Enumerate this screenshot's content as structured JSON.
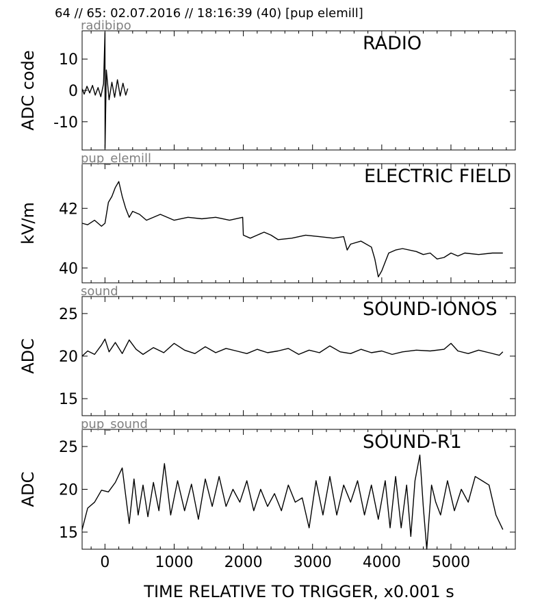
{
  "header": {
    "title": "64 // 65:   02.07.2016 // 18:16:39 (40)  [pup elemill]"
  },
  "xaxis": {
    "label": "TIME RELATIVE TO TRIGGER,   x0.001 s",
    "range": [
      -330,
      5930
    ],
    "ticks": [
      0,
      1000,
      2000,
      3000,
      4000,
      5000
    ]
  },
  "chart_data": [
    {
      "type": "line",
      "source_label": "radibipo",
      "title": "RADIO",
      "ylabel": "ADC code",
      "ylim": [
        -19,
        19
      ],
      "yticks": [
        10,
        0,
        -10
      ],
      "ytick_labels": [
        "10",
        "0",
        "-10"
      ],
      "series": [
        {
          "x": [
            -330,
            -300,
            -260,
            -220,
            -180,
            -140,
            -100,
            -60,
            -20,
            0,
            1,
            20,
            60,
            100,
            140,
            180,
            220,
            260,
            300,
            330
          ],
          "y": [
            0.5,
            -1.2,
            1.3,
            -0.8,
            1.6,
            -1.5,
            0.9,
            -2.0,
            2.1,
            18.5,
            -18.5,
            6.5,
            -3.0,
            2.6,
            -2.2,
            3.4,
            -1.8,
            2.3,
            -1.5,
            0.6
          ]
        }
      ]
    },
    {
      "type": "line",
      "source_label": "pup_elemill",
      "title": "ELECTRIC FIELD",
      "ylabel": "kV/m",
      "ylim": [
        39.5,
        43.5
      ],
      "yticks": [
        42,
        40
      ],
      "ytick_labels": [
        "42",
        "40"
      ],
      "series": [
        {
          "x": [
            -330,
            -250,
            -150,
            -50,
            0,
            50,
            100,
            150,
            200,
            250,
            300,
            350,
            400,
            500,
            600,
            800,
            1000,
            1200,
            1400,
            1600,
            1800,
            1990,
            2000,
            2100,
            2200,
            2300,
            2400,
            2500,
            2700,
            2900,
            3100,
            3300,
            3450,
            3500,
            3550,
            3700,
            3850,
            3900,
            3950,
            4000,
            4050,
            4100,
            4200,
            4300,
            4500,
            4600,
            4700,
            4800,
            4900,
            5000,
            5100,
            5200,
            5400,
            5600,
            5750
          ],
          "y": [
            41.5,
            41.45,
            41.6,
            41.4,
            41.5,
            42.2,
            42.4,
            42.7,
            42.9,
            42.4,
            42.0,
            41.7,
            41.9,
            41.8,
            41.6,
            41.8,
            41.6,
            41.7,
            41.65,
            41.7,
            41.6,
            41.7,
            41.1,
            41.0,
            41.1,
            41.2,
            41.1,
            40.95,
            41.0,
            41.1,
            41.05,
            41.0,
            41.05,
            40.6,
            40.8,
            40.9,
            40.7,
            40.3,
            39.7,
            39.9,
            40.2,
            40.5,
            40.6,
            40.65,
            40.55,
            40.45,
            40.5,
            40.3,
            40.35,
            40.5,
            40.4,
            40.5,
            40.45,
            40.5,
            40.5
          ]
        }
      ]
    },
    {
      "type": "line",
      "source_label": "sound",
      "title": "SOUND-IONOS",
      "ylabel": "ADC",
      "ylim": [
        13,
        27
      ],
      "yticks": [
        25,
        20,
        15
      ],
      "ytick_labels": [
        "25",
        "20",
        "15"
      ],
      "series": [
        {
          "x": [
            -330,
            -250,
            -150,
            -50,
            0,
            60,
            150,
            250,
            350,
            450,
            550,
            700,
            850,
            1000,
            1150,
            1300,
            1450,
            1600,
            1750,
            1900,
            2050,
            2200,
            2350,
            2500,
            2650,
            2800,
            2950,
            3100,
            3250,
            3400,
            3550,
            3700,
            3850,
            4000,
            4150,
            4300,
            4500,
            4700,
            4900,
            5000,
            5100,
            5250,
            5400,
            5550,
            5700,
            5750
          ],
          "y": [
            20.0,
            20.6,
            20.2,
            21.3,
            22.0,
            20.5,
            21.6,
            20.3,
            21.9,
            20.8,
            20.2,
            21.0,
            20.4,
            21.5,
            20.7,
            20.3,
            21.1,
            20.4,
            20.9,
            20.6,
            20.3,
            20.8,
            20.4,
            20.6,
            20.9,
            20.2,
            20.7,
            20.4,
            21.2,
            20.5,
            20.3,
            20.8,
            20.4,
            20.6,
            20.2,
            20.5,
            20.7,
            20.6,
            20.8,
            21.5,
            20.6,
            20.3,
            20.7,
            20.4,
            20.1,
            20.5
          ]
        }
      ]
    },
    {
      "type": "line",
      "source_label": "pup_sound",
      "title": "SOUND-R1",
      "ylabel": "ADC",
      "ylim": [
        13,
        27
      ],
      "yticks": [
        25,
        20,
        15
      ],
      "ytick_labels": [
        "25",
        "20",
        "15"
      ],
      "series": [
        {
          "x": [
            -330,
            -250,
            -150,
            -50,
            50,
            150,
            250,
            350,
            420,
            480,
            550,
            620,
            700,
            780,
            860,
            950,
            1050,
            1150,
            1250,
            1350,
            1450,
            1550,
            1650,
            1750,
            1850,
            1950,
            2050,
            2150,
            2250,
            2350,
            2450,
            2550,
            2650,
            2750,
            2850,
            2950,
            3050,
            3150,
            3250,
            3350,
            3450,
            3550,
            3650,
            3750,
            3850,
            3950,
            4050,
            4120,
            4200,
            4280,
            4360,
            4420,
            4480,
            4550,
            4600,
            4650,
            4720,
            4780,
            4850,
            4950,
            5050,
            5150,
            5250,
            5350,
            5450,
            5550,
            5650,
            5750
          ],
          "y": [
            15.3,
            17.8,
            18.5,
            19.9,
            19.7,
            20.8,
            22.5,
            16.0,
            21.2,
            17.0,
            20.5,
            16.8,
            20.8,
            17.5,
            23.0,
            17.0,
            21.0,
            17.5,
            20.6,
            16.5,
            21.2,
            18.0,
            21.5,
            18.0,
            20.0,
            18.5,
            21.0,
            17.5,
            20.0,
            18.0,
            19.5,
            17.5,
            20.5,
            18.5,
            19.0,
            15.5,
            21.0,
            17.0,
            21.5,
            17.0,
            20.5,
            18.5,
            21.0,
            17.0,
            20.5,
            16.5,
            21.0,
            15.5,
            21.5,
            15.5,
            20.5,
            14.5,
            21.0,
            24.0,
            18.0,
            12.5,
            20.5,
            18.5,
            17.0,
            21.0,
            17.5,
            20.0,
            18.5,
            21.5,
            21.0,
            20.5,
            17.0,
            15.3
          ]
        }
      ]
    }
  ]
}
